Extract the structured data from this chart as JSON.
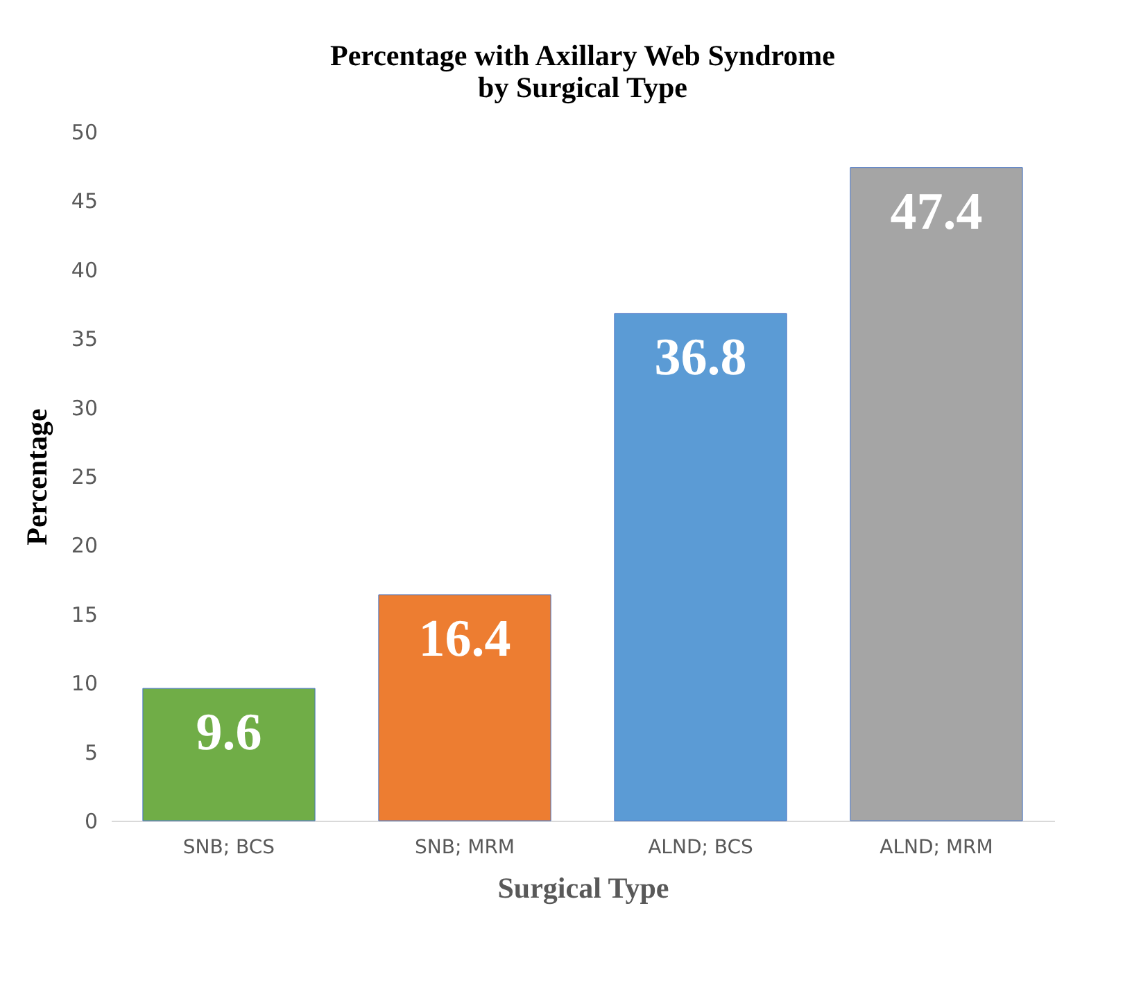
{
  "chart_data": {
    "type": "bar",
    "title": "Percentage with Axillary Web Syndrome\nby Surgical Type",
    "xlabel": "Surgical Type",
    "ylabel": "Percentage",
    "categories": [
      "SNB; BCS",
      "SNB; MRM",
      "ALND; BCS",
      "ALND; MRM"
    ],
    "values": [
      9.6,
      16.4,
      36.8,
      47.4
    ],
    "colors": [
      "#70ad47",
      "#ed7d31",
      "#5b9bd5",
      "#a5a5a5"
    ],
    "ylim": [
      0,
      50
    ],
    "yticks": [
      0,
      5,
      10,
      15,
      20,
      25,
      30,
      35,
      40,
      45,
      50
    ],
    "data_labels": true
  }
}
